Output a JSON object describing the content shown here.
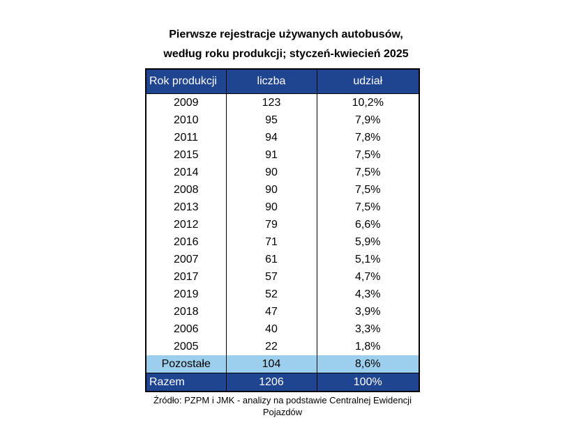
{
  "title_line1": "Pierwsze rejestracje używanych autobusów,",
  "title_line2": "według roku produkcji; styczeń-kwiecień 2025",
  "headers": [
    "Rok produkcji",
    "liczba",
    "udział"
  ],
  "rows": [
    [
      "2009",
      "123",
      "10,2%"
    ],
    [
      "2010",
      "95",
      "7,9%"
    ],
    [
      "2011",
      "94",
      "7,8%"
    ],
    [
      "2015",
      "91",
      "7,5%"
    ],
    [
      "2014",
      "90",
      "7,5%"
    ],
    [
      "2008",
      "90",
      "7,5%"
    ],
    [
      "2013",
      "90",
      "7,5%"
    ],
    [
      "2012",
      "79",
      "6,6%"
    ],
    [
      "2016",
      "71",
      "5,9%"
    ],
    [
      "2007",
      "61",
      "5,1%"
    ],
    [
      "2017",
      "57",
      "4,7%"
    ],
    [
      "2019",
      "52",
      "4,3%"
    ],
    [
      "2018",
      "47",
      "3,9%"
    ],
    [
      "2006",
      "40",
      "3,3%"
    ],
    [
      "2005",
      "22",
      "1,8%"
    ]
  ],
  "other_row": [
    "Pozostałe",
    "104",
    "8,6%"
  ],
  "total_row": [
    "Razem",
    "1206",
    "100%"
  ],
  "source_line1": "Źródło: PZPM i JMK - analizy na podstawie Centralnej Ewidencji",
  "source_line2": "Pojazdów",
  "colors": {
    "header_bg": "#1f4590",
    "other_bg": "#9ccfee"
  }
}
